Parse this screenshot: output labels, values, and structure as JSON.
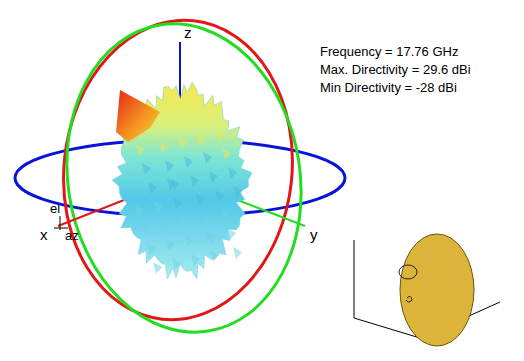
{
  "chart_data": {
    "type": "pattern3d",
    "annotations": [
      "Frequency = 17.76 GHz",
      "Max. Directivity = 29.6 dBi",
      "Min Directivity = -28 dBi"
    ],
    "axis_labels": {
      "x": "x",
      "y": "y",
      "z": "z",
      "az": "az",
      "el": "el"
    }
  }
}
